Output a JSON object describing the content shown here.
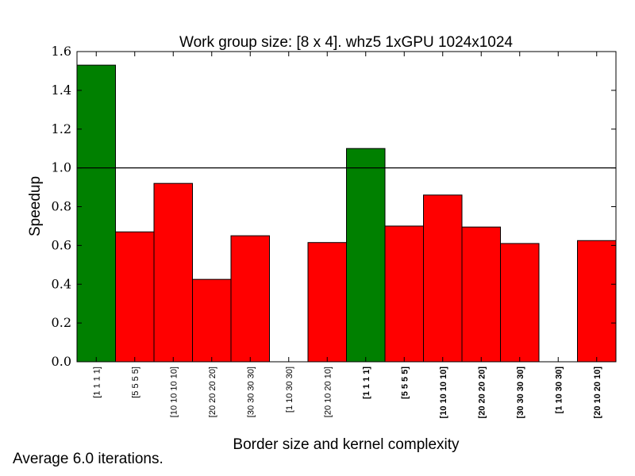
{
  "chart_data": {
    "type": "bar",
    "title": "Work group size: [8 x 4]. whz5 1xGPU 1024x1024",
    "xlabel": "Border size and kernel complexity",
    "ylabel": "Speedup",
    "ylim": [
      0.0,
      1.6
    ],
    "yticks": [
      "0.0",
      "0.2",
      "0.4",
      "0.6",
      "0.8",
      "1.0",
      "1.2",
      "1.4",
      "1.6"
    ],
    "reference_line": 1.0,
    "categories": [
      "[1 1 1 1]",
      "[5 5 5 5]",
      "[10 10 10 10]",
      "[20 20 20 20]",
      "[30 30 30 30]",
      "[1 10 30 30]",
      "[20 10 20 10]",
      "[1 1 1 1]",
      "[5 5 5 5]",
      "[10 10 10 10]",
      "[20 20 20 20]",
      "[30 30 30 30]",
      "[1 10 30 30]",
      "[20 10 20 10]"
    ],
    "bold_ticks": [
      false,
      false,
      false,
      false,
      false,
      false,
      false,
      true,
      true,
      true,
      true,
      true,
      true,
      true
    ],
    "values": [
      1.53,
      0.67,
      0.92,
      0.425,
      0.65,
      0.0,
      0.615,
      1.1,
      0.7,
      0.86,
      0.695,
      0.61,
      0.0,
      0.625
    ],
    "colors": {
      "above": "#008000",
      "below": "#ff0000"
    },
    "grid": false
  },
  "note": "Average 6.0 iterations."
}
